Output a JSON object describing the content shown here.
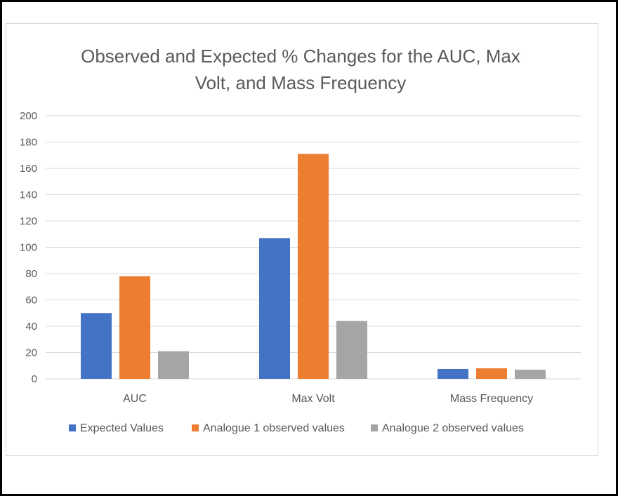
{
  "chart_data": {
    "type": "bar",
    "title": "Observed and Expected % Changes for the AUC, Max Volt, and Mass Frequency",
    "title_lines": [
      "Observed and Expected % Changes for the AUC, Max",
      "Volt, and Mass Frequency"
    ],
    "categories": [
      "AUC",
      "Max Volt",
      "Mass Frequency"
    ],
    "series": [
      {
        "name": "Expected Values",
        "color": "#4472c4",
        "values": [
          50,
          107,
          7.5
        ]
      },
      {
        "name": "Analogue 1 observed values",
        "color": "#ed7d31",
        "values": [
          78,
          171,
          8
        ]
      },
      {
        "name": "Analogue 2 observed values",
        "color": "#a5a5a5",
        "values": [
          21,
          44,
          7
        ]
      }
    ],
    "ylim": [
      0,
      200
    ],
    "yticks": [
      "0",
      "20",
      "40",
      "60",
      "80",
      "100",
      "120",
      "140",
      "160",
      "180",
      "200"
    ],
    "grid": true,
    "legend_position": "bottom"
  }
}
